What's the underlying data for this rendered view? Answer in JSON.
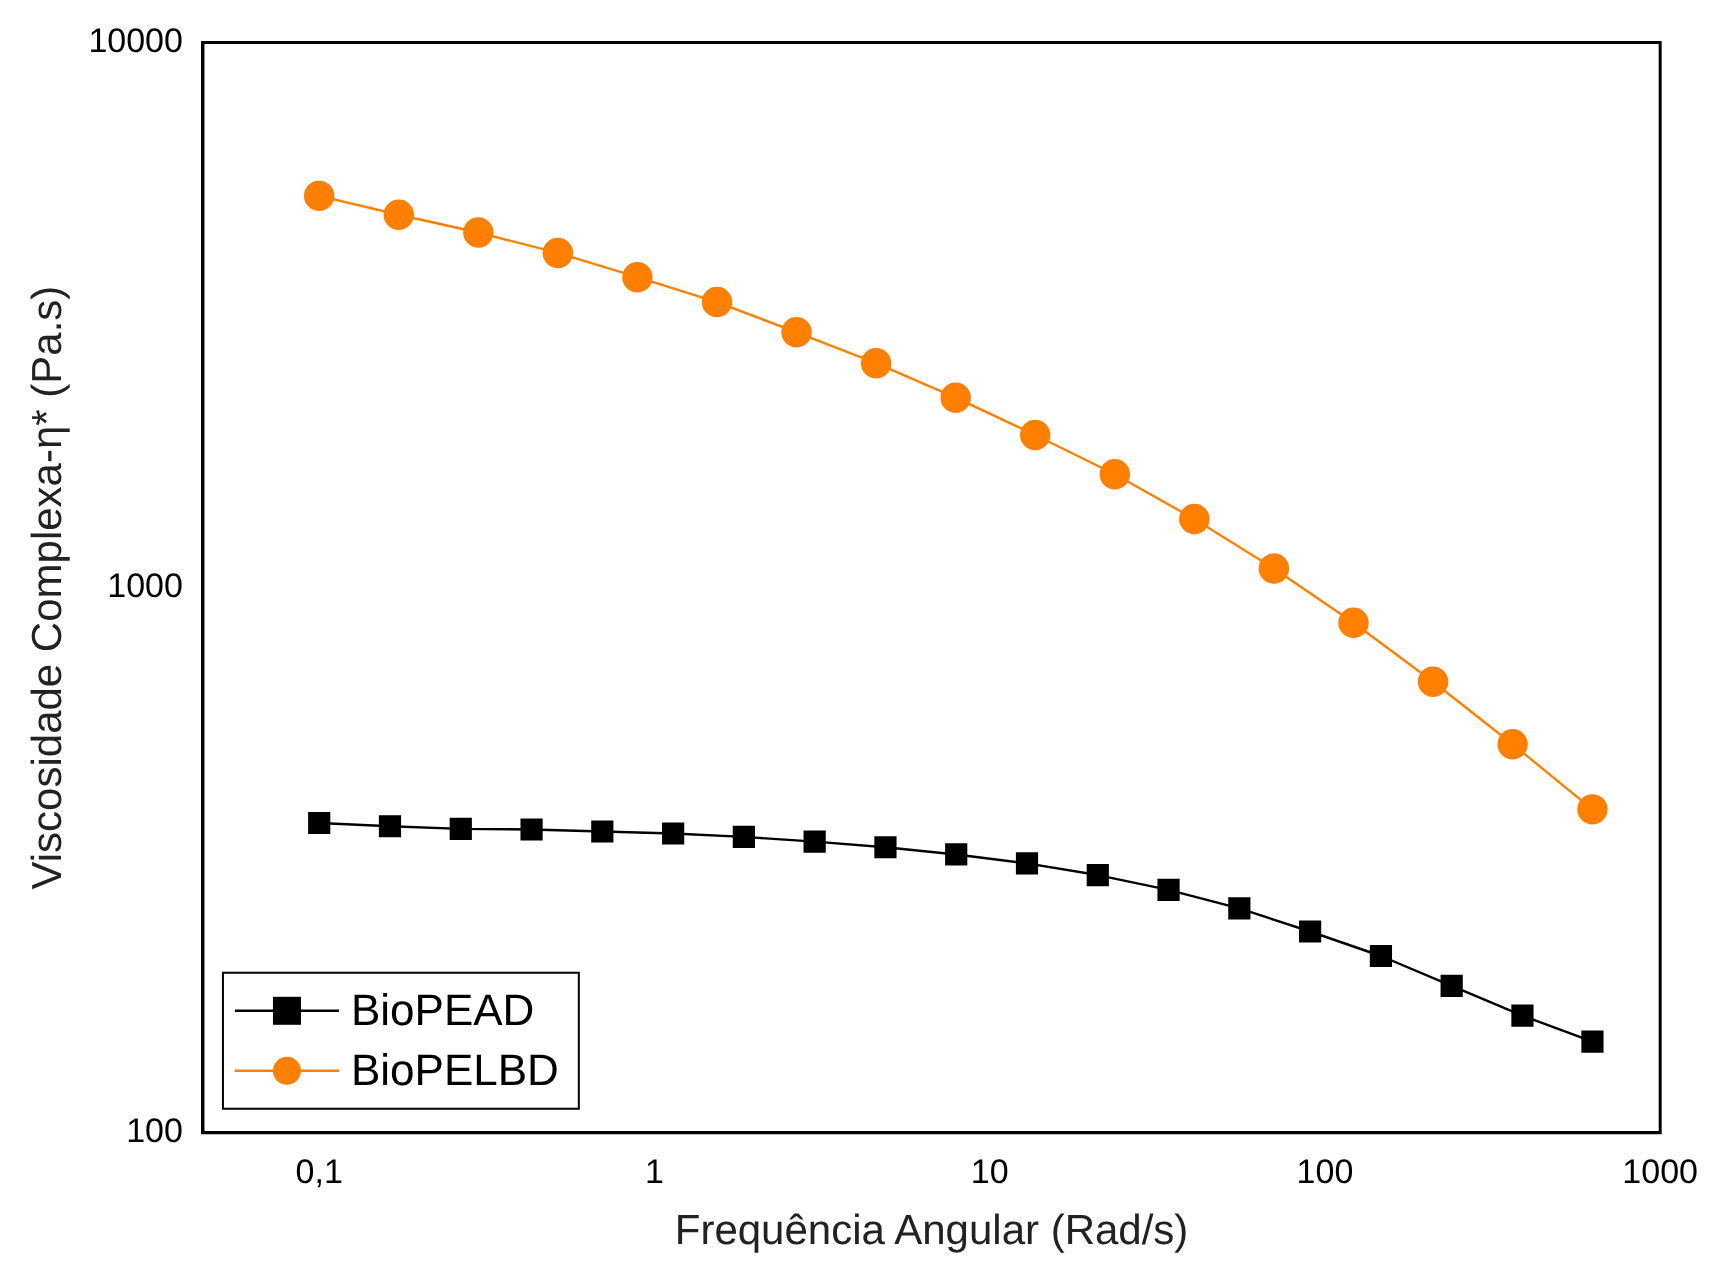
{
  "chart_data": {
    "type": "line",
    "xlabel": "Frequência Angular (Rad/s)",
    "ylabel": "Viscosidade Complexa-η* (Pa.s)",
    "log": "xy",
    "xlim": [
      0.045,
      1000
    ],
    "ylim": [
      100,
      10000
    ],
    "xticks": [
      {
        "value": 0.1,
        "label": "0,1"
      },
      1,
      10,
      100,
      1000
    ],
    "yticks": [
      100,
      1000,
      10000
    ],
    "grid": false,
    "legend": "bottom left",
    "series": [
      {
        "name": "BioPEAD",
        "color": "#000000",
        "marker": "square",
        "x": [
          0.1,
          0.1626,
          0.2644,
          0.43,
          0.699,
          1.137,
          1.848,
          3.005,
          4.887,
          7.946,
          12.92,
          21.01,
          34.16,
          55.55,
          90.33,
          146.9,
          238.8,
          388.3,
          628
        ],
        "values": [
          370,
          365,
          361,
          360,
          357,
          354,
          349,
          342,
          334,
          324,
          312,
          297,
          279,
          258,
          234,
          211,
          186,
          164,
          147
        ]
      },
      {
        "name": "BioPELBD",
        "color": "#ff8000",
        "marker": "circle",
        "x": [
          0.1,
          0.1727,
          0.2983,
          0.5152,
          0.8898,
          1.537,
          2.654,
          4.584,
          7.917,
          13.67,
          23.62,
          40.79,
          70.45,
          121.7,
          210.2,
          363,
          628
        ],
        "values": [
          5230,
          4830,
          4480,
          4110,
          3710,
          3340,
          2940,
          2580,
          2230,
          1905,
          1614,
          1336,
          1084,
          862,
          672,
          516,
          392
        ]
      }
    ]
  }
}
